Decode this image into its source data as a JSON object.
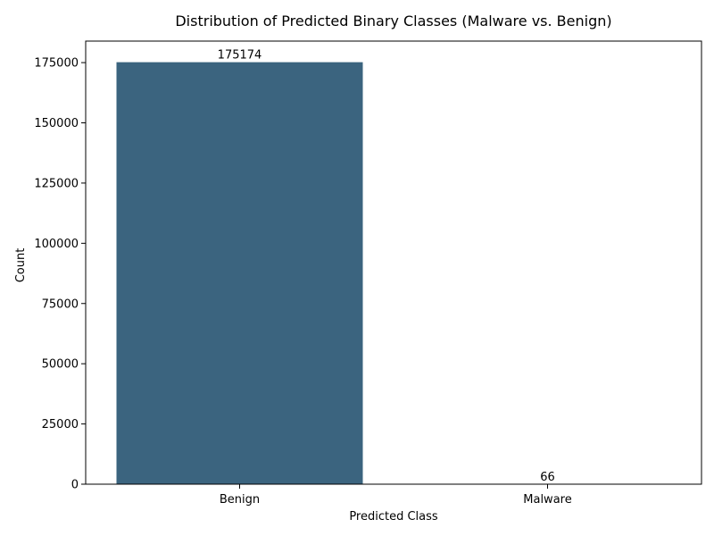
{
  "chart_data": {
    "type": "bar",
    "title": "Distribution of Predicted Binary Classes (Malware vs. Benign)",
    "xlabel": "Predicted Class",
    "ylabel": "Count",
    "categories": [
      "Benign",
      "Malware"
    ],
    "values": [
      175174,
      66
    ],
    "data_labels": [
      "175174",
      "66"
    ],
    "ylim": [
      0,
      183933
    ],
    "yticks": [
      0,
      25000,
      50000,
      75000,
      100000,
      125000,
      150000,
      175000
    ],
    "ytick_labels": [
      "0",
      "25000",
      "50000",
      "75000",
      "100000",
      "125000",
      "150000",
      "175000"
    ],
    "grid": false,
    "legend": "none",
    "colors": {
      "bars": [
        "#3b647f",
        "#2e8a8c"
      ],
      "axis": "#000000",
      "text": "#000000"
    }
  }
}
